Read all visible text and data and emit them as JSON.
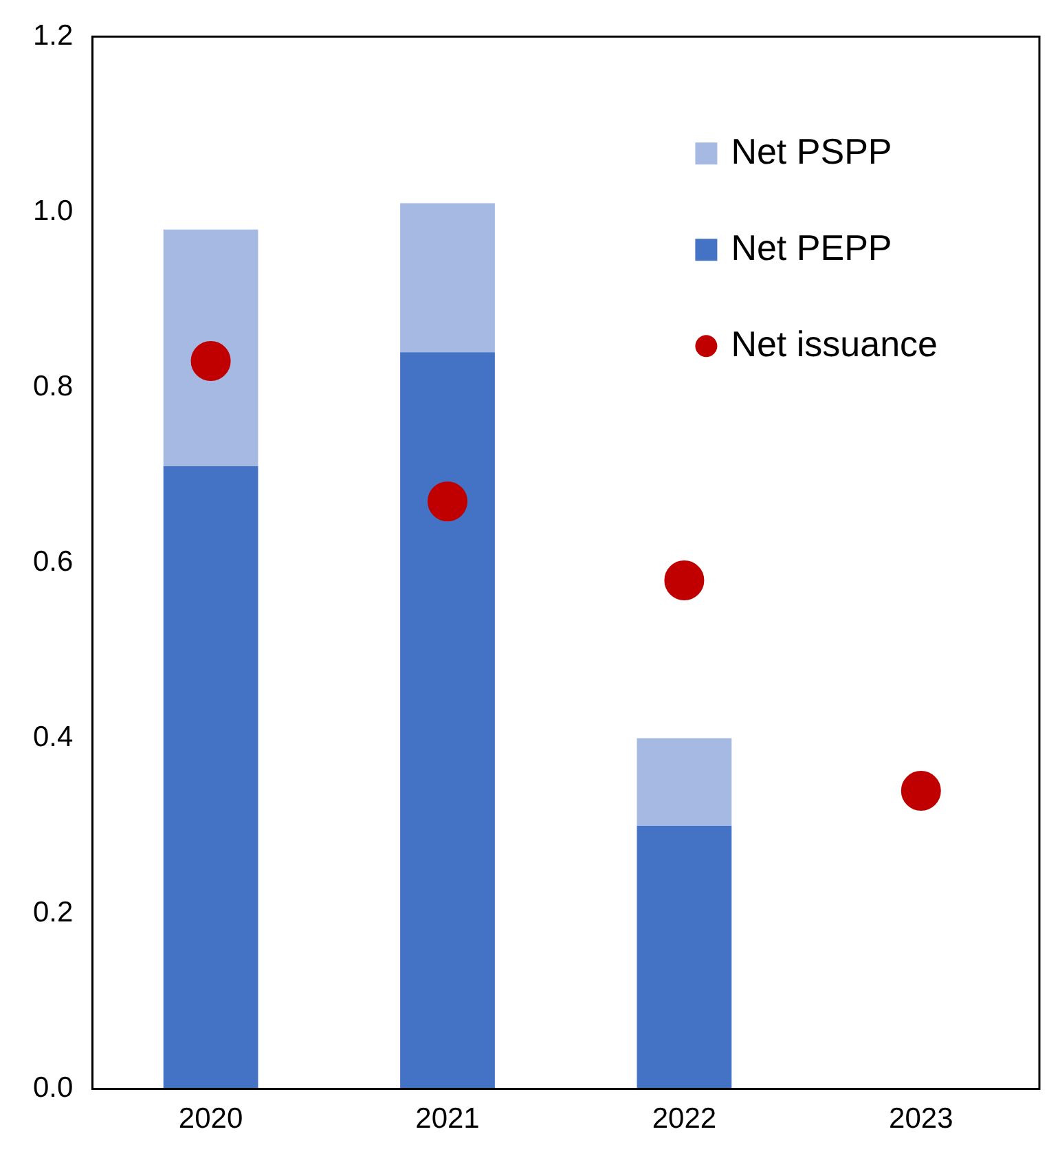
{
  "chart_data": {
    "type": "bar",
    "stacked": true,
    "categories": [
      "2020",
      "2021",
      "2022",
      "2023"
    ],
    "series": [
      {
        "name": "Net PEPP",
        "color": "#4472c4",
        "values": [
          0.71,
          0.84,
          0.3,
          null
        ]
      },
      {
        "name": "Net PSPP",
        "color": "#a6b9e3",
        "values": [
          0.27,
          0.17,
          0.1,
          null
        ]
      },
      {
        "name": "Net issuance",
        "type": "scatter",
        "color": "#c00000",
        "values": [
          0.83,
          0.67,
          0.58,
          0.34
        ]
      }
    ],
    "ylim": [
      0,
      1.2
    ],
    "yticks": [
      {
        "value": 0,
        "label": "0.0"
      },
      {
        "value": 0.2,
        "label": "0.2"
      },
      {
        "value": 0.4,
        "label": "0.4"
      },
      {
        "value": 0.6,
        "label": "0.6"
      },
      {
        "value": 0.8,
        "label": "0.8"
      },
      {
        "value": 1,
        "label": "1.0"
      },
      {
        "value": 1.2,
        "label": "1.2"
      }
    ],
    "grid": false,
    "legend": "top right",
    "marker": "circle"
  }
}
